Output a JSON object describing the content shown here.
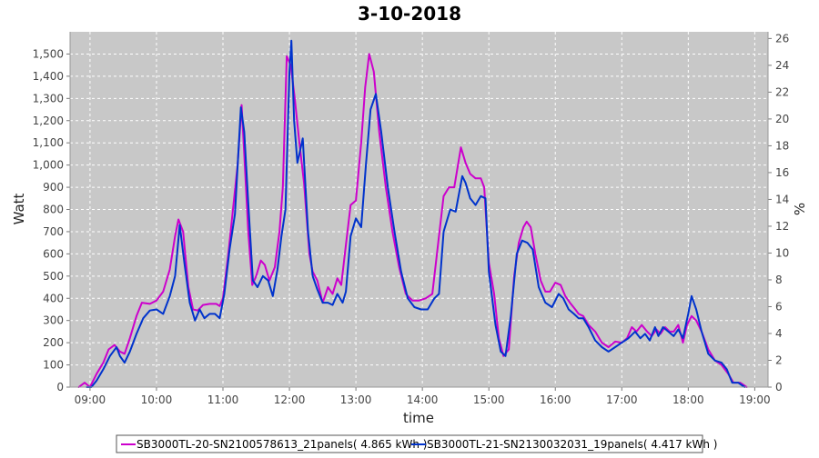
{
  "chart_data": {
    "type": "line",
    "title": "3-10-2018",
    "xlabel": "time",
    "ylabel": "Watt",
    "y2label": "%",
    "xlim": [
      8.7,
      19.2
    ],
    "ylim": [
      0,
      1600
    ],
    "y2lim": [
      0,
      26.5
    ],
    "x_ticks": [
      9,
      10,
      11,
      12,
      13,
      14,
      15,
      16,
      17,
      18,
      19
    ],
    "x_tick_labels": [
      "09:00",
      "10:00",
      "11:00",
      "12:00",
      "13:00",
      "14:00",
      "15:00",
      "16:00",
      "17:00",
      "18:00",
      "19:00"
    ],
    "y_ticks": [
      0,
      100,
      200,
      300,
      400,
      500,
      600,
      700,
      800,
      900,
      1000,
      1100,
      1200,
      1300,
      1400,
      1500
    ],
    "y_tick_labels": [
      "0",
      "100",
      "200",
      "300",
      "400",
      "500",
      "600",
      "700",
      "800",
      "900",
      "1,000",
      "1,100",
      "1,200",
      "1,300",
      "1,400",
      "1,500"
    ],
    "y2_ticks": [
      0,
      2,
      4,
      6,
      8,
      10,
      12,
      14,
      16,
      18,
      20,
      22,
      24,
      26
    ],
    "y2_tick_labels": [
      "0",
      "2",
      "4",
      "6",
      "8",
      "10",
      "12",
      "14",
      "16",
      "18",
      "20",
      "22",
      "24",
      "26"
    ],
    "grid": true,
    "legend_position": "bottom",
    "series": [
      {
        "name": "SB3000TL-20-SN2100578613_21panels( 4.865 kWh )",
        "color": "#cc00cc",
        "points": [
          [
            8.83,
            0
          ],
          [
            8.92,
            20
          ],
          [
            9.0,
            0
          ],
          [
            9.1,
            60
          ],
          [
            9.2,
            110
          ],
          [
            9.28,
            170
          ],
          [
            9.37,
            190
          ],
          [
            9.45,
            160
          ],
          [
            9.52,
            150
          ],
          [
            9.6,
            220
          ],
          [
            9.7,
            320
          ],
          [
            9.78,
            380
          ],
          [
            9.9,
            375
          ],
          [
            10.0,
            390
          ],
          [
            10.1,
            430
          ],
          [
            10.2,
            530
          ],
          [
            10.28,
            680
          ],
          [
            10.33,
            755
          ],
          [
            10.4,
            700
          ],
          [
            10.48,
            450
          ],
          [
            10.55,
            350
          ],
          [
            10.62,
            345
          ],
          [
            10.7,
            370
          ],
          [
            10.8,
            375
          ],
          [
            10.9,
            375
          ],
          [
            10.95,
            365
          ],
          [
            11.0,
            400
          ],
          [
            11.08,
            600
          ],
          [
            11.15,
            800
          ],
          [
            11.22,
            1000
          ],
          [
            11.28,
            1270
          ],
          [
            11.32,
            1050
          ],
          [
            11.38,
            700
          ],
          [
            11.44,
            460
          ],
          [
            11.5,
            500
          ],
          [
            11.57,
            570
          ],
          [
            11.63,
            550
          ],
          [
            11.7,
            480
          ],
          [
            11.78,
            540
          ],
          [
            11.85,
            700
          ],
          [
            11.9,
            900
          ],
          [
            11.96,
            1490
          ],
          [
            12.02,
            1450
          ],
          [
            12.08,
            1300
          ],
          [
            12.15,
            1100
          ],
          [
            12.22,
            920
          ],
          [
            12.3,
            600
          ],
          [
            12.35,
            520
          ],
          [
            12.42,
            480
          ],
          [
            12.5,
            380
          ],
          [
            12.58,
            450
          ],
          [
            12.65,
            420
          ],
          [
            12.72,
            490
          ],
          [
            12.78,
            460
          ],
          [
            12.85,
            640
          ],
          [
            12.92,
            820
          ],
          [
            13.0,
            840
          ],
          [
            13.08,
            1100
          ],
          [
            13.14,
            1350
          ],
          [
            13.2,
            1500
          ],
          [
            13.27,
            1420
          ],
          [
            13.35,
            1150
          ],
          [
            13.45,
            900
          ],
          [
            13.55,
            700
          ],
          [
            13.65,
            540
          ],
          [
            13.75,
            420
          ],
          [
            13.85,
            390
          ],
          [
            13.95,
            390
          ],
          [
            14.05,
            400
          ],
          [
            14.15,
            420
          ],
          [
            14.25,
            680
          ],
          [
            14.32,
            860
          ],
          [
            14.4,
            900
          ],
          [
            14.48,
            900
          ],
          [
            14.58,
            1080
          ],
          [
            14.65,
            1010
          ],
          [
            14.72,
            960
          ],
          [
            14.8,
            940
          ],
          [
            14.88,
            940
          ],
          [
            14.93,
            900
          ],
          [
            15.0,
            560
          ],
          [
            15.08,
            420
          ],
          [
            15.15,
            220
          ],
          [
            15.22,
            140
          ],
          [
            15.3,
            170
          ],
          [
            15.38,
            500
          ],
          [
            15.45,
            650
          ],
          [
            15.52,
            720
          ],
          [
            15.57,
            745
          ],
          [
            15.63,
            720
          ],
          [
            15.7,
            600
          ],
          [
            15.78,
            480
          ],
          [
            15.85,
            430
          ],
          [
            15.92,
            430
          ],
          [
            16.0,
            470
          ],
          [
            16.08,
            460
          ],
          [
            16.15,
            410
          ],
          [
            16.22,
            380
          ],
          [
            16.3,
            350
          ],
          [
            16.35,
            330
          ],
          [
            16.42,
            320
          ],
          [
            16.5,
            280
          ],
          [
            16.6,
            250
          ],
          [
            16.7,
            200
          ],
          [
            16.8,
            180
          ],
          [
            16.9,
            205
          ],
          [
            17.0,
            200
          ],
          [
            17.08,
            220
          ],
          [
            17.15,
            270
          ],
          [
            17.22,
            250
          ],
          [
            17.3,
            280
          ],
          [
            17.38,
            250
          ],
          [
            17.45,
            230
          ],
          [
            17.52,
            260
          ],
          [
            17.58,
            240
          ],
          [
            17.65,
            270
          ],
          [
            17.72,
            250
          ],
          [
            17.78,
            250
          ],
          [
            17.85,
            280
          ],
          [
            17.92,
            200
          ],
          [
            17.98,
            280
          ],
          [
            18.05,
            320
          ],
          [
            18.12,
            300
          ],
          [
            18.2,
            250
          ],
          [
            18.3,
            170
          ],
          [
            18.4,
            120
          ],
          [
            18.5,
            100
          ],
          [
            18.6,
            60
          ],
          [
            18.68,
            20
          ],
          [
            18.78,
            20
          ],
          [
            18.88,
            0
          ]
        ]
      },
      {
        "name": "SB3000TL-21-SN2130032031_19panels( 4.417 kWh )",
        "color": "#0033cc",
        "points": [
          [
            8.95,
            0
          ],
          [
            9.02,
            0
          ],
          [
            9.1,
            30
          ],
          [
            9.2,
            80
          ],
          [
            9.3,
            140
          ],
          [
            9.4,
            180
          ],
          [
            9.45,
            140
          ],
          [
            9.52,
            110
          ],
          [
            9.6,
            160
          ],
          [
            9.7,
            240
          ],
          [
            9.8,
            310
          ],
          [
            9.9,
            345
          ],
          [
            10.0,
            350
          ],
          [
            10.1,
            330
          ],
          [
            10.2,
            410
          ],
          [
            10.28,
            500
          ],
          [
            10.35,
            730
          ],
          [
            10.42,
            560
          ],
          [
            10.5,
            380
          ],
          [
            10.58,
            300
          ],
          [
            10.65,
            350
          ],
          [
            10.72,
            310
          ],
          [
            10.8,
            330
          ],
          [
            10.88,
            330
          ],
          [
            10.95,
            310
          ],
          [
            11.02,
            420
          ],
          [
            11.1,
            620
          ],
          [
            11.18,
            780
          ],
          [
            11.27,
            1260
          ],
          [
            11.32,
            1150
          ],
          [
            11.38,
            830
          ],
          [
            11.45,
            480
          ],
          [
            11.52,
            450
          ],
          [
            11.6,
            500
          ],
          [
            11.68,
            480
          ],
          [
            11.75,
            410
          ],
          [
            11.82,
            530
          ],
          [
            11.88,
            680
          ],
          [
            11.94,
            800
          ],
          [
            12.0,
            1420
          ],
          [
            12.03,
            1560
          ],
          [
            12.07,
            1200
          ],
          [
            12.12,
            1010
          ],
          [
            12.2,
            1120
          ],
          [
            12.28,
            700
          ],
          [
            12.35,
            500
          ],
          [
            12.42,
            440
          ],
          [
            12.5,
            380
          ],
          [
            12.58,
            380
          ],
          [
            12.65,
            370
          ],
          [
            12.72,
            420
          ],
          [
            12.8,
            380
          ],
          [
            12.85,
            430
          ],
          [
            12.92,
            680
          ],
          [
            13.0,
            760
          ],
          [
            13.08,
            720
          ],
          [
            13.15,
            1000
          ],
          [
            13.22,
            1250
          ],
          [
            13.3,
            1320
          ],
          [
            13.38,
            1150
          ],
          [
            13.48,
            900
          ],
          [
            13.58,
            700
          ],
          [
            13.68,
            520
          ],
          [
            13.78,
            400
          ],
          [
            13.88,
            360
          ],
          [
            13.98,
            350
          ],
          [
            14.08,
            350
          ],
          [
            14.18,
            400
          ],
          [
            14.25,
            420
          ],
          [
            14.32,
            700
          ],
          [
            14.42,
            800
          ],
          [
            14.5,
            790
          ],
          [
            14.6,
            950
          ],
          [
            14.65,
            920
          ],
          [
            14.72,
            850
          ],
          [
            14.8,
            820
          ],
          [
            14.88,
            860
          ],
          [
            14.95,
            850
          ],
          [
            15.0,
            520
          ],
          [
            15.1,
            280
          ],
          [
            15.18,
            160
          ],
          [
            15.25,
            140
          ],
          [
            15.33,
            320
          ],
          [
            15.42,
            600
          ],
          [
            15.5,
            660
          ],
          [
            15.58,
            650
          ],
          [
            15.66,
            620
          ],
          [
            15.75,
            450
          ],
          [
            15.85,
            380
          ],
          [
            15.95,
            360
          ],
          [
            16.05,
            420
          ],
          [
            16.12,
            400
          ],
          [
            16.2,
            350
          ],
          [
            16.28,
            330
          ],
          [
            16.35,
            310
          ],
          [
            16.42,
            310
          ],
          [
            16.5,
            270
          ],
          [
            16.6,
            210
          ],
          [
            16.7,
            180
          ],
          [
            16.8,
            160
          ],
          [
            16.9,
            180
          ],
          [
            17.0,
            200
          ],
          [
            17.1,
            220
          ],
          [
            17.2,
            250
          ],
          [
            17.28,
            220
          ],
          [
            17.35,
            240
          ],
          [
            17.42,
            210
          ],
          [
            17.5,
            270
          ],
          [
            17.55,
            230
          ],
          [
            17.62,
            270
          ],
          [
            17.7,
            250
          ],
          [
            17.78,
            230
          ],
          [
            17.85,
            260
          ],
          [
            17.92,
            220
          ],
          [
            18.0,
            330
          ],
          [
            18.05,
            410
          ],
          [
            18.12,
            350
          ],
          [
            18.2,
            250
          ],
          [
            18.3,
            150
          ],
          [
            18.4,
            120
          ],
          [
            18.5,
            110
          ],
          [
            18.58,
            80
          ],
          [
            18.66,
            20
          ],
          [
            18.75,
            20
          ],
          [
            18.85,
            0
          ]
        ]
      }
    ]
  }
}
